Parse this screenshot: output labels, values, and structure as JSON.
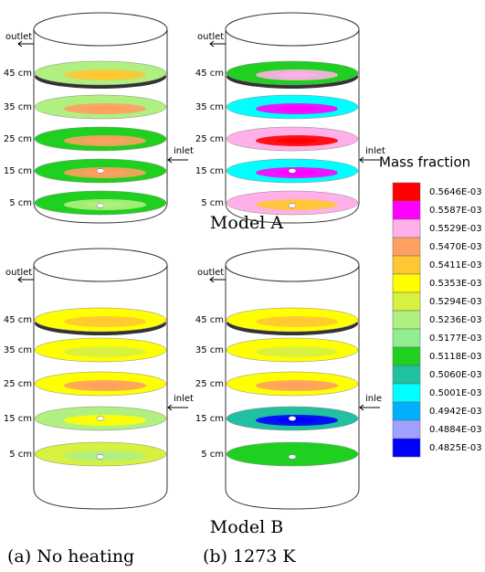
{
  "panels": [
    {
      "outlet": "outlet",
      "inlet": "inlet",
      "levels": [
        "45 cm",
        "35 cm",
        "25 cm",
        "15 cm",
        "5 cm"
      ]
    },
    {
      "outlet": "outlet",
      "inlet": "inlet",
      "levels": [
        "45 cm",
        "35 cm",
        "25 cm",
        "15 cm",
        "5 cm"
      ]
    },
    {
      "outlet": "outlet",
      "inlet": "inlet",
      "levels": [
        "45 cm",
        "35 cm",
        "25 cm",
        "15 cm",
        "5 cm"
      ]
    },
    {
      "outlet": "outlet",
      "inlet": "inle",
      "levels": [
        "45 cm",
        "35 cm",
        "25 cm",
        "15 cm",
        "5 cm"
      ]
    }
  ],
  "models": [
    "Model A",
    "Model B"
  ],
  "captions": [
    "(a) No heating",
    "(b) 1273 K"
  ],
  "legend": {
    "title": "Mass fraction",
    "entries": [
      {
        "label": "0.5646E-03",
        "color": "#ff0000"
      },
      {
        "label": "0.5587E-03",
        "color": "#ff00ff"
      },
      {
        "label": "0.5529E-03",
        "color": "#ffb0e8"
      },
      {
        "label": "0.5470E-03",
        "color": "#ffa060"
      },
      {
        "label": "0.5411E-03",
        "color": "#ffc832"
      },
      {
        "label": "0.5353E-03",
        "color": "#ffff00"
      },
      {
        "label": "0.5294E-03",
        "color": "#d8f040"
      },
      {
        "label": "0.5236E-03",
        "color": "#b0f080"
      },
      {
        "label": "0.5177E-03",
        "color": "#90ee90"
      },
      {
        "label": "0.5118E-03",
        "color": "#20d020"
      },
      {
        "label": "0.5060E-03",
        "color": "#20c0a0"
      },
      {
        "label": "0.5001E-03",
        "color": "#00ffff"
      },
      {
        "label": "0.4942E-03",
        "color": "#00b0ff"
      },
      {
        "label": "0.4884E-03",
        "color": "#a0a0ff"
      },
      {
        "label": "0.4825E-03",
        "color": "#0000ff"
      }
    ]
  }
}
